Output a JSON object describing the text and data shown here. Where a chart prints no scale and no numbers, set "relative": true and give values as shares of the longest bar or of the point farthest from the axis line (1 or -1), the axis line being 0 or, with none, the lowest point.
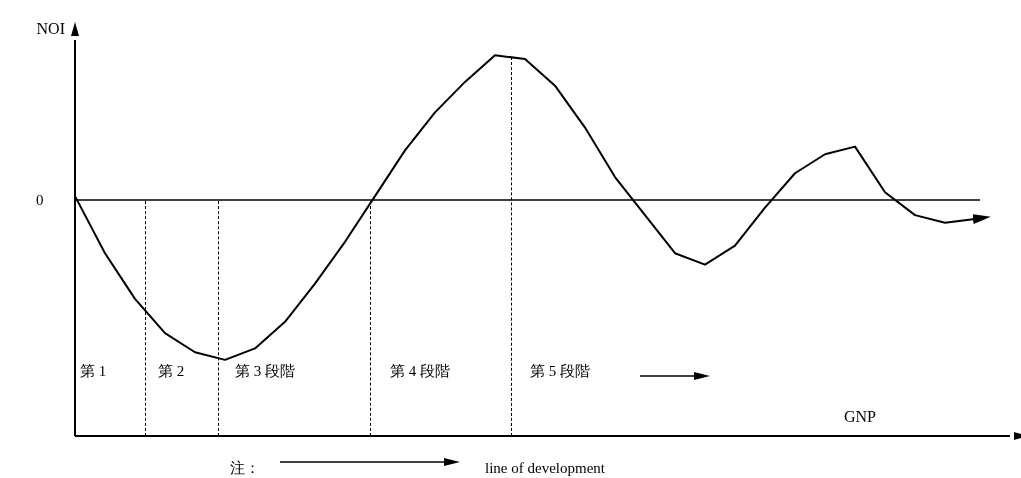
{
  "chart_data": {
    "type": "line",
    "relative": true,
    "xlabel": "GNP",
    "ylabel": "NOI",
    "marker": "none",
    "line_style": "solid",
    "categories": [
      null,
      null,
      null,
      null,
      null,
      null,
      null,
      null,
      null,
      null,
      null,
      null,
      null,
      null,
      null,
      null,
      null,
      null,
      null,
      null,
      null,
      null,
      null,
      null,
      null,
      null,
      null,
      null,
      null,
      null,
      null
    ],
    "series": [
      {
        "color": "#000000",
        "values": [
          0.63,
          0.48,
          0.36,
          0.27,
          0.22,
          0.2,
          0.23,
          0.3,
          0.4,
          0.51,
          0.63,
          0.75,
          0.85,
          0.93,
          1,
          0.99,
          0.92,
          0.81,
          0.68,
          0.58,
          0.48,
          0.45,
          0.5,
          0.6,
          0.69,
          0.74,
          0.76,
          0.64,
          0.58,
          0.56,
          0.57
        ]
      }
    ],
    "ref_lines": [
      {
        "axis": "y",
        "value": 0.62,
        "line_style": "solid"
      }
    ],
    "annotations": [
      "0",
      "第 1",
      "第 2",
      "第 3 段階",
      "第 4 段階",
      "第 5 段階",
      "注：",
      "line of development"
    ]
  }
}
